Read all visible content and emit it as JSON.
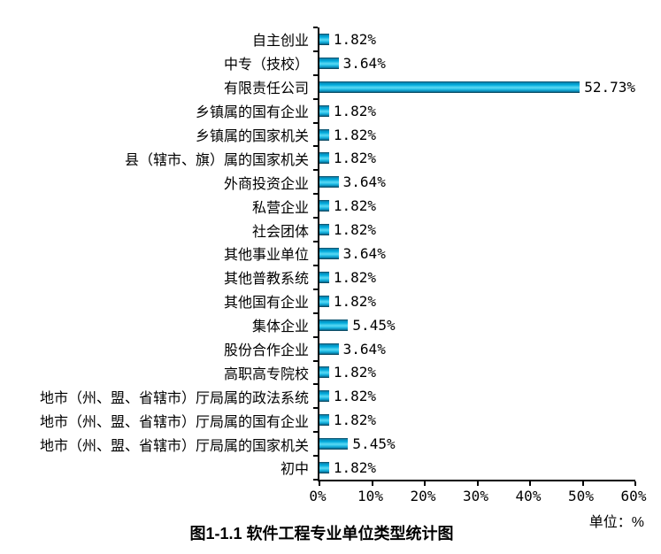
{
  "chart_data": {
    "type": "bar",
    "orientation": "horizontal",
    "title": "图1-1.1 软件工程专业单位类型统计图",
    "unit_label": "单位：%",
    "categories": [
      "自主创业",
      "中专（技校）",
      "有限责任公司",
      "乡镇属的国有企业",
      "乡镇属的国家机关",
      "县（辖市、旗）属的国家机关",
      "外商投资企业",
      "私营企业",
      "社会团体",
      "其他事业单位",
      "其他普教系统",
      "其他国有企业",
      "集体企业",
      "股份合作企业",
      "高职高专院校",
      "地市（州、盟、省辖市）厅局属的政法系统",
      "地市（州、盟、省辖市）厅局属的国有企业",
      "地市（州、盟、省辖市）厅局属的国家机关",
      "初中"
    ],
    "values": [
      1.82,
      3.64,
      52.73,
      1.82,
      1.82,
      1.82,
      3.64,
      1.82,
      1.82,
      3.64,
      1.82,
      1.82,
      5.45,
      3.64,
      1.82,
      1.82,
      1.82,
      5.45,
      1.82
    ],
    "value_labels": [
      "1.82%",
      "3.64%",
      "52.73%",
      "1.82%",
      "1.82%",
      "1.82%",
      "3.64%",
      "1.82%",
      "1.82%",
      "3.64%",
      "1.82%",
      "1.82%",
      "5.45%",
      "3.64%",
      "1.82%",
      "1.82%",
      "1.82%",
      "5.45%",
      "1.82%"
    ],
    "x_ticks": [
      "0%",
      "10%",
      "20%",
      "30%",
      "40%",
      "50%",
      "60%"
    ],
    "xlim": [
      0,
      60
    ],
    "xlabel": "",
    "ylabel": "",
    "grid": false,
    "legend": null,
    "bar_color": "#00aadc",
    "bar_gradient": [
      "#14455c",
      "#0890be",
      "#00aadc",
      "#55d6f1",
      "#00aadc",
      "#0886b2",
      "#0d3648"
    ],
    "axis_color": "#000000"
  }
}
